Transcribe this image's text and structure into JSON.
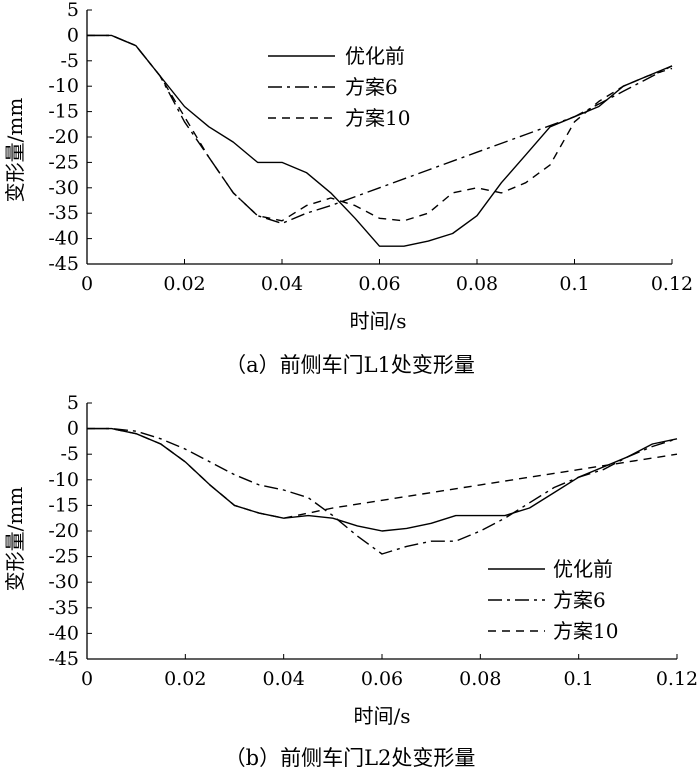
{
  "chart_data": [
    {
      "type": "line",
      "caption": "（a）前侧车门L1处变形量",
      "xlabel": "时间/s",
      "ylabel": "变形量/mm",
      "xlim": [
        0,
        0.12
      ],
      "ylim": [
        -45,
        5
      ],
      "xticks": [
        0,
        0.02,
        0.04,
        0.06,
        0.08,
        0.1,
        0.12
      ],
      "xtick_labels": [
        "0",
        "0.02",
        "0.04",
        "0.06",
        "0.08",
        "0.1",
        "0.12"
      ],
      "yticks": [
        5,
        0,
        -5,
        -10,
        -15,
        -20,
        -25,
        -30,
        -35,
        -40,
        -45
      ],
      "ytick_labels": [
        "5",
        "0",
        "-5",
        "-10",
        "-15",
        "-20",
        "-25",
        "-30",
        "-35",
        "-40",
        "-45"
      ],
      "legend_position": "top-center",
      "series": [
        {
          "name": "优化前",
          "style": "solid",
          "x": [
            0,
            0.005,
            0.01,
            0.015,
            0.02,
            0.025,
            0.03,
            0.035,
            0.04,
            0.045,
            0.05,
            0.055,
            0.06,
            0.065,
            0.07,
            0.075,
            0.08,
            0.085,
            0.09,
            0.095,
            0.1,
            0.105,
            0.11,
            0.115,
            0.12
          ],
          "y": [
            0,
            0,
            -2,
            -8,
            -14,
            -18,
            -21,
            -25,
            -25,
            -27,
            -31,
            -36,
            -41.5,
            -41.5,
            -40.5,
            -39,
            -35.5,
            -29,
            -23.5,
            -18,
            -16,
            -14,
            -10,
            -8,
            -6
          ]
        },
        {
          "name": "方案6",
          "style": "dashdot",
          "x": [
            0,
            0.005,
            0.01,
            0.015,
            0.02,
            0.025,
            0.03,
            0.035,
            0.04,
            0.045,
            0.05,
            0.06,
            0.07,
            0.08,
            0.09,
            0.1,
            0.11,
            0.12
          ],
          "y": [
            0,
            0,
            -2,
            -8,
            -17,
            -24,
            -31,
            -35.5,
            -37,
            -35,
            -33.5,
            -30,
            -26.5,
            -23,
            -19.5,
            -16,
            -11,
            -6
          ]
        },
        {
          "name": "方案10",
          "style": "dashed",
          "x": [
            0,
            0.005,
            0.01,
            0.015,
            0.02,
            0.025,
            0.03,
            0.035,
            0.04,
            0.045,
            0.05,
            0.055,
            0.06,
            0.065,
            0.07,
            0.075,
            0.08,
            0.085,
            0.09,
            0.095,
            0.1,
            0.105,
            0.11,
            0.115,
            0.12
          ],
          "y": [
            0,
            0,
            -2,
            -8,
            -16,
            -24,
            -31,
            -35.5,
            -36.5,
            -33.5,
            -32,
            -33.5,
            -36,
            -36.5,
            -35,
            -31,
            -30,
            -31,
            -29,
            -25.5,
            -17,
            -13,
            -10,
            -8,
            -6.5
          ]
        }
      ]
    },
    {
      "type": "line",
      "caption": "（b）前侧车门L2处变形量",
      "xlabel": "时间/s",
      "ylabel": "变形量/mm",
      "xlim": [
        0,
        0.12
      ],
      "ylim": [
        -45,
        5
      ],
      "xticks": [
        0,
        0.02,
        0.04,
        0.06,
        0.08,
        0.1,
        0.12
      ],
      "xtick_labels": [
        "0",
        "0.02",
        "0.04",
        "0.06",
        "0.08",
        "0.1",
        "0.12"
      ],
      "yticks": [
        5,
        0,
        -5,
        -10,
        -15,
        -20,
        -25,
        -30,
        -35,
        -40,
        -45
      ],
      "ytick_labels": [
        "5",
        "0",
        "-5",
        "-10",
        "-15",
        "-20",
        "-25",
        "-30",
        "-35",
        "-40",
        "-45"
      ],
      "legend_position": "bottom-right",
      "series": [
        {
          "name": "优化前",
          "style": "solid",
          "x": [
            0,
            0.005,
            0.01,
            0.015,
            0.02,
            0.025,
            0.03,
            0.035,
            0.04,
            0.045,
            0.05,
            0.055,
            0.06,
            0.065,
            0.07,
            0.075,
            0.08,
            0.085,
            0.09,
            0.095,
            0.1,
            0.105,
            0.11,
            0.115,
            0.12
          ],
          "y": [
            0,
            0,
            -1,
            -3,
            -6.5,
            -11,
            -15,
            -16.5,
            -17.5,
            -17,
            -17.5,
            -19,
            -20,
            -19.5,
            -18.5,
            -17,
            -17,
            -17,
            -15.5,
            -12.5,
            -9.5,
            -7.5,
            -5.5,
            -3,
            -2
          ]
        },
        {
          "name": "方案6",
          "style": "dashdot",
          "x": [
            0,
            0.005,
            0.01,
            0.015,
            0.02,
            0.025,
            0.03,
            0.035,
            0.04,
            0.045,
            0.05,
            0.055,
            0.06,
            0.065,
            0.07,
            0.075,
            0.08,
            0.085,
            0.09,
            0.095,
            0.1,
            0.105,
            0.11,
            0.115,
            0.12
          ],
          "y": [
            0,
            0,
            -0.5,
            -2,
            -4,
            -6.5,
            -9,
            -11,
            -12,
            -13.5,
            -17,
            -21,
            -24.5,
            -23,
            -22,
            -22,
            -20,
            -17.5,
            -14.5,
            -11.5,
            -9.5,
            -8,
            -5.5,
            -3.5,
            -2
          ]
        },
        {
          "name": "方案10",
          "style": "dashed",
          "x": [
            0,
            0.005,
            0.01,
            0.015,
            0.02,
            0.025,
            0.03,
            0.035,
            0.04,
            0.045,
            0.05,
            0.06,
            0.07,
            0.08,
            0.09,
            0.1,
            0.11,
            0.12
          ],
          "y": [
            0,
            0,
            -1,
            -3,
            -6.5,
            -11,
            -15,
            -16.5,
            -17.5,
            -16.5,
            -15.5,
            -14,
            -12.5,
            -11,
            -9.5,
            -8,
            -6.5,
            -5
          ]
        }
      ]
    }
  ]
}
